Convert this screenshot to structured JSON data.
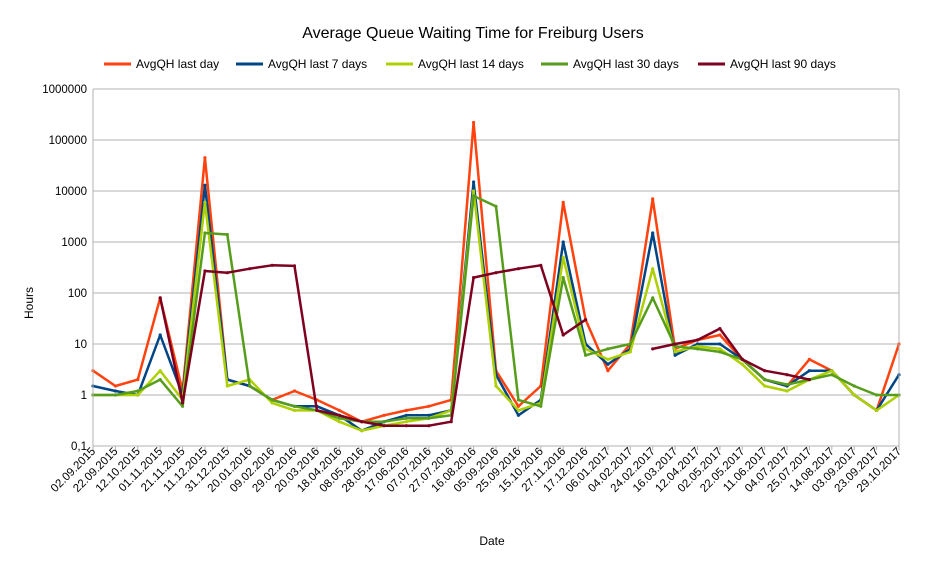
{
  "chart_data": {
    "type": "line",
    "title": "Average Queue Waiting Time for Freiburg Users",
    "xlabel": "Date",
    "ylabel": "Hours",
    "yscale": "log",
    "ylim": [
      0.1,
      1000000
    ],
    "y_ticks": [
      "0,1",
      "1",
      "10",
      "100",
      "1000",
      "10000",
      "100000",
      "1000000"
    ],
    "grid": "horizontal",
    "legend_position": "top",
    "x_tick_labels": [
      "02.09.2015",
      "22.09.2015",
      "12.10.2015",
      "01.11.2015",
      "21.11.2015",
      "11.12.2015",
      "31.12.2015",
      "20.01.2016",
      "09.02.2016",
      "29.02.2016",
      "20.03.2016",
      "18.04.2016",
      "08.05.2016",
      "28.05.2016",
      "17.06.2016",
      "07.07.2016",
      "27.07.2016",
      "16.08.2016",
      "05.09.2016",
      "25.09.2016",
      "15.10.2016",
      "27.11.2016",
      "17.12.2016",
      "06.01.2017",
      "04.02.2017",
      "24.02.2017",
      "16.03.2017",
      "12.04.2017",
      "02.05.2017",
      "22.05.2017",
      "11.06.2017",
      "04.07.2017",
      "25.07.2017",
      "14.08.2017",
      "03.09.2017",
      "23.09.2017",
      "29.10.2017"
    ],
    "x": [
      "02.09.2015",
      "22.09.2015",
      "12.10.2015",
      "01.11.2015",
      "21.11.2015",
      "11.12.2015",
      "31.12.2015",
      "20.01.2016",
      "09.02.2016",
      "29.02.2016",
      "20.03.2016",
      "18.04.2016",
      "08.05.2016",
      "28.05.2016",
      "17.06.2016",
      "07.07.2016",
      "27.07.2016",
      "16.08.2016",
      "05.09.2016",
      "25.09.2016",
      "15.10.2016",
      "27.11.2016",
      "17.12.2016",
      "06.01.2017",
      "04.02.2017",
      "24.02.2017",
      "16.03.2017",
      "12.04.2017",
      "02.05.2017",
      "22.05.2017",
      "11.06.2017",
      "04.07.2017",
      "25.07.2017",
      "14.08.2017",
      "03.09.2017",
      "23.09.2017",
      "29.10.2017"
    ],
    "series": [
      {
        "name": "AvgQH last day",
        "color": "#ff420e",
        "values": [
          3,
          1.5,
          2,
          80,
          1.2,
          45000,
          2,
          1.5,
          0.8,
          1.2,
          0.8,
          0.5,
          0.3,
          0.4,
          0.5,
          0.6,
          0.8,
          220000,
          3,
          0.6,
          1.5,
          6000,
          30,
          3,
          10,
          7000,
          8,
          12,
          15,
          5,
          2,
          1.5,
          5,
          3,
          1,
          0.5,
          10
        ]
      },
      {
        "name": "AvgQH last 7 days",
        "color": "#004586",
        "values": [
          1.5,
          1.2,
          1,
          15,
          1,
          13000,
          2,
          1.5,
          0.8,
          0.6,
          0.6,
          0.4,
          0.2,
          0.3,
          0.4,
          0.4,
          0.5,
          15000,
          2.5,
          0.4,
          0.8,
          1000,
          10,
          4,
          8,
          1500,
          6,
          10,
          10,
          5,
          2,
          1.5,
          3,
          3,
          1,
          0.5,
          2.5
        ]
      },
      {
        "name": "AvgQH last 14 days",
        "color": "#aecf00",
        "values": [
          1,
          1,
          1,
          3,
          0.8,
          6000,
          1.5,
          2,
          0.7,
          0.5,
          0.5,
          0.3,
          0.2,
          0.25,
          0.3,
          0.35,
          0.5,
          10000,
          1.5,
          0.5,
          0.7,
          500,
          8,
          5,
          7,
          300,
          7,
          9,
          8,
          4,
          1.5,
          1.2,
          2,
          3,
          1,
          0.5,
          1
        ]
      },
      {
        "name": "AvgQH last 30 days",
        "color": "#579d1c",
        "values": [
          1,
          1,
          1.2,
          2,
          0.6,
          1500,
          1400,
          1.5,
          0.8,
          0.6,
          0.5,
          0.35,
          0.3,
          0.3,
          0.35,
          0.35,
          0.4,
          8000,
          5000,
          0.8,
          0.6,
          200,
          6,
          8,
          10,
          80,
          9,
          8,
          7,
          5,
          2,
          1.6,
          2,
          2.5,
          1.5,
          1,
          1
        ]
      },
      {
        "name": "AvgQH last 90 days",
        "color": "#7e0021",
        "values": [
          null,
          null,
          null,
          80,
          0.7,
          270,
          250,
          300,
          350,
          340,
          0.5,
          0.4,
          0.3,
          0.25,
          0.25,
          0.25,
          0.3,
          200,
          250,
          300,
          350,
          15,
          30,
          null,
          null,
          8,
          10,
          12,
          20,
          5,
          3,
          2.5,
          2,
          null,
          null,
          null,
          null
        ]
      }
    ]
  }
}
